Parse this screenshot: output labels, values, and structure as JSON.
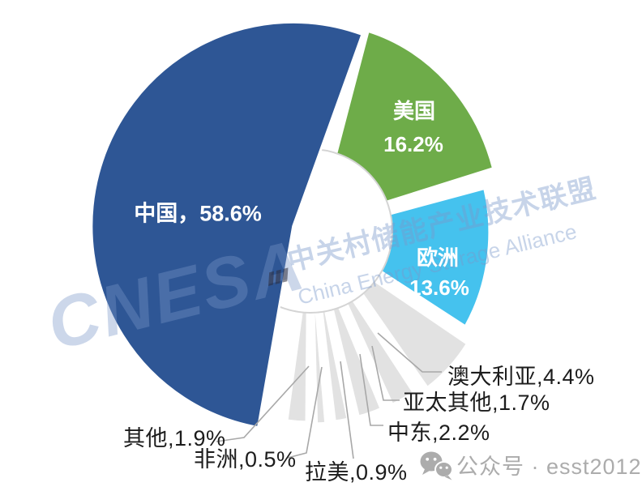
{
  "background": "#FFFFFF",
  "chart_data": {
    "type": "pie",
    "style": "exploded pie with white donut hole, minor slices pulled out with leader-line callouts",
    "unit": "%",
    "total_pct": 100.0,
    "title": "",
    "legend_position": "none",
    "slices": [
      {
        "name": "美国",
        "pct": 16.2,
        "color": "#6EAC49",
        "label_lines": [
          "美国",
          "16.2%"
        ],
        "label_placement": "inside",
        "label_color": "#FFFFFF"
      },
      {
        "name": "欧洲",
        "pct": 13.6,
        "color": "#45C2EE",
        "label_lines": [
          "欧洲",
          "13.6%"
        ],
        "label_placement": "inside",
        "label_color": "#FFFFFF"
      },
      {
        "name": "澳大利亚",
        "pct": 4.4,
        "color": "#E2E2E2",
        "label_lines": [
          "澳大利亚,4.4%"
        ],
        "label_placement": "callout",
        "label_color": "#1C1C1C"
      },
      {
        "name": "亚太其他",
        "pct": 1.7,
        "color": "#E2E2E2",
        "label_lines": [
          "亚太其他,1.7%"
        ],
        "label_placement": "callout",
        "label_color": "#1C1C1C"
      },
      {
        "name": "中东",
        "pct": 2.2,
        "color": "#E2E2E2",
        "label_lines": [
          "中东,2.2%"
        ],
        "label_placement": "callout",
        "label_color": "#1C1C1C"
      },
      {
        "name": "拉美",
        "pct": 0.9,
        "color": "#E2E2E2",
        "label_lines": [
          "拉美,0.9%"
        ],
        "label_placement": "callout",
        "label_color": "#1C1C1C"
      },
      {
        "name": "非洲",
        "pct": 0.5,
        "color": "#E2E2E2",
        "label_lines": [
          "非洲,0.5%"
        ],
        "label_placement": "callout",
        "label_color": "#1C1C1C"
      },
      {
        "name": "其他",
        "pct": 1.9,
        "color": "#E2E2E2",
        "label_lines": [
          "其他,1.9%"
        ],
        "label_placement": "callout",
        "label_color": "#1C1C1C"
      },
      {
        "name": "中国",
        "pct": 58.6,
        "color": "#2E5695",
        "label_lines": [
          "中国，58.6%"
        ],
        "label_placement": "inside",
        "label_color": "#FFFFFF"
      }
    ]
  },
  "watermark": {
    "cnesa": "CNESA",
    "org_cn": "中关村储能产业技术联盟",
    "org_en": "China Energy Storage Alliance",
    "color": "#7A98CA"
  },
  "footer": {
    "wechat_label": "公众号 · esst2012"
  }
}
